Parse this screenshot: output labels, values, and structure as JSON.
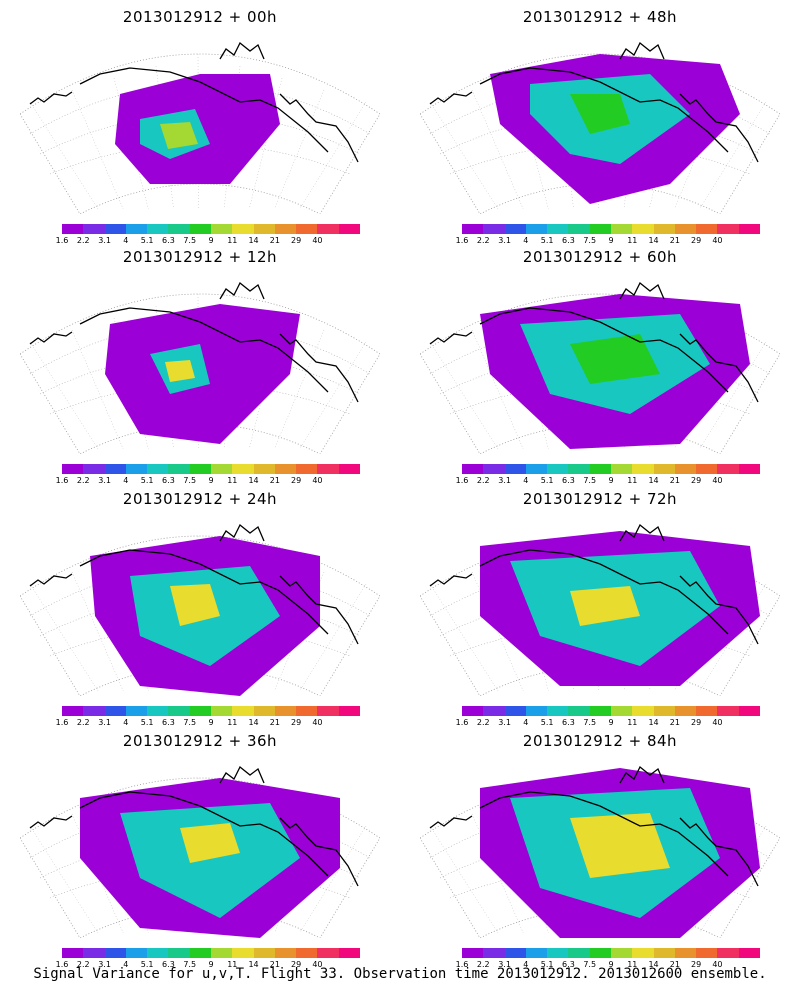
{
  "colorbar": {
    "colors": [
      "#9b00d6",
      "#7a2be6",
      "#2f55e8",
      "#1a9fe8",
      "#17c7c0",
      "#19c98a",
      "#22cc22",
      "#a4d832",
      "#e8dc2e",
      "#e0b82c",
      "#e8922e",
      "#f06a30",
      "#f03060",
      "#f0087c"
    ],
    "ticks": [
      "1.6",
      "2.2",
      "3.1",
      "4",
      "5.1",
      "6.3",
      "7.5",
      "9",
      "11",
      "14",
      "21",
      "29",
      "40"
    ]
  },
  "panels": [
    {
      "title": "2013012912 + 00h"
    },
    {
      "title": "2013012912 + 48h"
    },
    {
      "title": "2013012912 + 12h"
    },
    {
      "title": "2013012912 + 60h"
    },
    {
      "title": "2013012912 + 24h"
    },
    {
      "title": "2013012912 + 72h"
    },
    {
      "title": "2013012912 + 36h"
    },
    {
      "title": "2013012912 + 84h"
    }
  ],
  "footer": "Signal Variance for u,v,T. Flight 33. Observation time 2013012912. 2013012600 ensemble."
}
